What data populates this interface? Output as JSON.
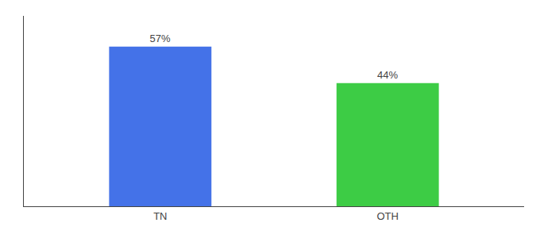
{
  "chart_data": {
    "type": "bar",
    "categories": [
      "TN",
      "OTH"
    ],
    "values": [
      57,
      44
    ],
    "value_labels": [
      "57%",
      "44%"
    ],
    "colors": [
      "#4472e8",
      "#3dcc45"
    ],
    "ylim": [
      0,
      68
    ],
    "yticks": [],
    "grid": false,
    "data_labels": true,
    "tick_labels": "x"
  }
}
